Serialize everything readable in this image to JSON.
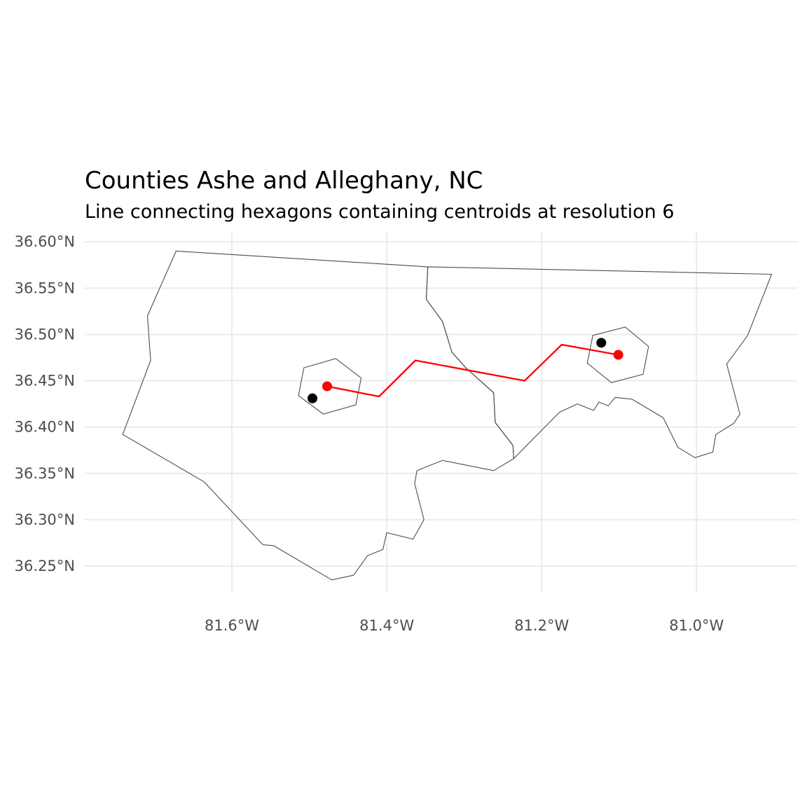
{
  "title": "Counties Ashe and Alleghany, NC",
  "subtitle": "Line connecting hexagons containing centroids at resolution 6",
  "colors": {
    "county_border": "#4d4d4d",
    "connecting_line": "#ff0000",
    "hex_center_point": "#ff0000",
    "centroid_point": "#000000",
    "gridline": "#ebebeb",
    "tick_label": "#4d4d4d"
  },
  "chart_data": {
    "type": "map",
    "xlabel": "",
    "ylabel": "",
    "grid": true,
    "xlim": [
      -81.79,
      -80.87
    ],
    "ylim": [
      36.222,
      36.61
    ],
    "x_ticks": [
      {
        "value": -81.6,
        "label": "81.6°W"
      },
      {
        "value": -81.4,
        "label": "81.4°W"
      },
      {
        "value": -81.2,
        "label": "81.2°W"
      },
      {
        "value": -81.0,
        "label": "81.0°W"
      }
    ],
    "y_ticks": [
      {
        "value": 36.6,
        "label": "36.60°N"
      },
      {
        "value": 36.55,
        "label": "36.55°N"
      },
      {
        "value": 36.5,
        "label": "36.50°N"
      },
      {
        "value": 36.45,
        "label": "36.45°N"
      },
      {
        "value": 36.4,
        "label": "36.40°N"
      },
      {
        "value": 36.35,
        "label": "36.35°N"
      },
      {
        "value": 36.3,
        "label": "36.30°N"
      },
      {
        "value": 36.25,
        "label": "36.25°N"
      }
    ],
    "counties": [
      {
        "name": "Ashe",
        "coordinates": [
          [
            -81.672,
            36.59
          ],
          [
            -81.347,
            36.573
          ],
          [
            -81.349,
            36.538
          ],
          [
            -81.328,
            36.514
          ],
          [
            -81.316,
            36.481
          ],
          [
            -81.298,
            36.464
          ],
          [
            -81.262,
            36.437
          ],
          [
            -81.26,
            36.405
          ],
          [
            -81.237,
            36.38
          ],
          [
            -81.236,
            36.366
          ],
          [
            -81.262,
            36.353
          ],
          [
            -81.328,
            36.364
          ],
          [
            -81.361,
            36.353
          ],
          [
            -81.364,
            36.339
          ],
          [
            -81.352,
            36.3
          ],
          [
            -81.366,
            36.279
          ],
          [
            -81.4,
            36.286
          ],
          [
            -81.405,
            36.268
          ],
          [
            -81.425,
            36.261
          ],
          [
            -81.443,
            36.24
          ],
          [
            -81.471,
            36.235
          ],
          [
            -81.546,
            36.272
          ],
          [
            -81.56,
            36.273
          ],
          [
            -81.636,
            36.341
          ],
          [
            -81.741,
            36.392
          ],
          [
            -81.705,
            36.472
          ],
          [
            -81.709,
            36.52
          ],
          [
            -81.672,
            36.59
          ]
        ]
      },
      {
        "name": "Alleghany",
        "coordinates": [
          [
            -81.347,
            36.573
          ],
          [
            -80.903,
            36.565
          ],
          [
            -80.934,
            36.499
          ],
          [
            -80.961,
            36.468
          ],
          [
            -80.944,
            36.414
          ],
          [
            -80.952,
            36.404
          ],
          [
            -80.975,
            36.392
          ],
          [
            -80.979,
            36.373
          ],
          [
            -81.002,
            36.367
          ],
          [
            -81.024,
            36.378
          ],
          [
            -81.043,
            36.41
          ],
          [
            -81.083,
            36.43
          ],
          [
            -81.093,
            36.431
          ],
          [
            -81.105,
            36.432
          ],
          [
            -81.114,
            36.423
          ],
          [
            -81.126,
            36.427
          ],
          [
            -81.133,
            36.418
          ],
          [
            -81.154,
            36.425
          ],
          [
            -81.177,
            36.416
          ],
          [
            -81.236,
            36.366
          ],
          [
            -81.237,
            36.38
          ],
          [
            -81.26,
            36.405
          ],
          [
            -81.262,
            36.437
          ],
          [
            -81.298,
            36.464
          ],
          [
            -81.316,
            36.481
          ],
          [
            -81.328,
            36.514
          ],
          [
            -81.349,
            36.538
          ],
          [
            -81.347,
            36.573
          ]
        ]
      }
    ],
    "hexagons": [
      {
        "name": "Ashe",
        "coordinates": [
          [
            -81.466,
            36.474
          ],
          [
            -81.433,
            36.453
          ],
          [
            -81.44,
            36.424
          ],
          [
            -81.482,
            36.414
          ],
          [
            -81.514,
            36.434
          ],
          [
            -81.507,
            36.464
          ],
          [
            -81.466,
            36.474
          ]
        ]
      },
      {
        "name": "Alleghany",
        "coordinates": [
          [
            -81.092,
            36.508
          ],
          [
            -81.062,
            36.487
          ],
          [
            -81.069,
            36.457
          ],
          [
            -81.11,
            36.448
          ],
          [
            -81.141,
            36.469
          ],
          [
            -81.134,
            36.499
          ],
          [
            -81.092,
            36.508
          ]
        ]
      }
    ],
    "centroids": [
      {
        "name": "Ashe",
        "x": -81.496,
        "y": 36.431
      },
      {
        "name": "Alleghany",
        "x": -81.123,
        "y": 36.491
      }
    ],
    "hex_centers": [
      {
        "name": "Ashe",
        "x": -81.477,
        "y": 36.444
      },
      {
        "name": "Alleghany",
        "x": -81.101,
        "y": 36.478
      }
    ],
    "connecting_line": [
      [
        -81.477,
        36.444
      ],
      [
        -81.41,
        36.433
      ],
      [
        -81.363,
        36.472
      ],
      [
        -81.222,
        36.45
      ],
      [
        -81.174,
        36.489
      ],
      [
        -81.101,
        36.478
      ]
    ]
  }
}
